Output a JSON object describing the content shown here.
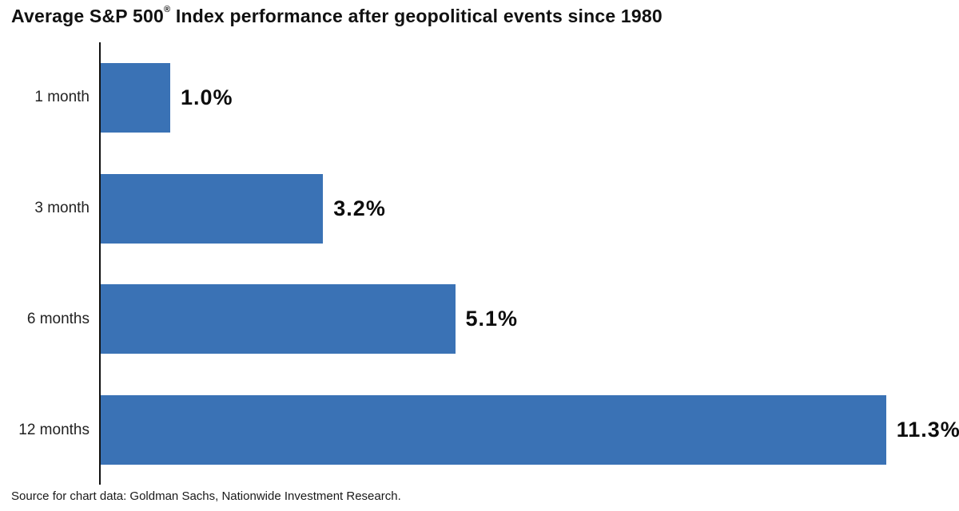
{
  "title": {
    "prefix": "Average S&P 500",
    "registered": "®",
    "suffix": " Index performance after geopolitical events since 1980"
  },
  "source": "Source for chart data: Goldman Sachs, Nationwide Investment Research.",
  "colors": {
    "bar": "#3A72B5",
    "axis": "#111111"
  },
  "chart_data": {
    "type": "bar",
    "orientation": "horizontal",
    "title": "Average S&P 500® Index performance after geopolitical events since 1980",
    "categories": [
      "1 month",
      "3 month",
      "6 months",
      "12 months"
    ],
    "values": [
      1.0,
      3.2,
      5.1,
      11.3
    ],
    "labels": [
      "1.0%",
      "3.2%",
      "5.1%",
      "11.3%"
    ],
    "xlabel": "",
    "ylabel": "",
    "xlim": [
      0,
      12.35
    ],
    "grid": false,
    "legend": false,
    "source": "Source for chart data: Goldman Sachs, Nationwide Investment Research."
  }
}
